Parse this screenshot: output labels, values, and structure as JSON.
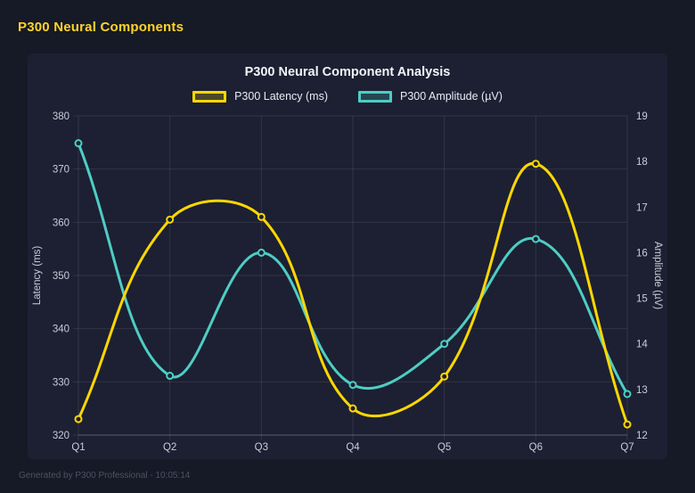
{
  "page": {
    "header_title": "P300 Neural Components",
    "footer_text": "Generated by P300 Professional - 10:05:14"
  },
  "colors": {
    "page_background": "#161a26",
    "card_background": "#1c2032",
    "header_accent": "#ffd32a",
    "latency_line": "#ffd700",
    "amplitude_line": "#4ecdc4",
    "grid_line": "rgba(255,255,255,0.09)",
    "axis_border": "rgba(255,255,255,0.2)",
    "tick_text": "#c9cdd8",
    "title_text": "#f2f4f8",
    "footer_text": "#4c5166"
  },
  "chart_data": {
    "type": "line",
    "title": "P300 Neural Component Analysis",
    "categories": [
      "Q1",
      "Q2",
      "Q3",
      "Q4",
      "Q5",
      "Q6",
      "Q7"
    ],
    "series": [
      {
        "name": "P300 Latency (ms)",
        "axis": "left",
        "color": "#ffd700",
        "values": [
          323,
          360.5,
          361,
          325,
          331,
          371,
          322
        ]
      },
      {
        "name": "P300 Amplitude (µV)",
        "axis": "right",
        "color": "#4ecdc4",
        "values": [
          18.4,
          13.3,
          16.0,
          13.1,
          14.0,
          16.3,
          12.9
        ]
      }
    ],
    "left_axis": {
      "label": "Latency (ms)",
      "min": 320,
      "max": 380,
      "step": 10
    },
    "right_axis": {
      "label": "Amplitude (µV)",
      "min": 12,
      "max": 19,
      "step": 1
    },
    "grid": true,
    "legend_position": "top",
    "line_tension": 0.4
  }
}
